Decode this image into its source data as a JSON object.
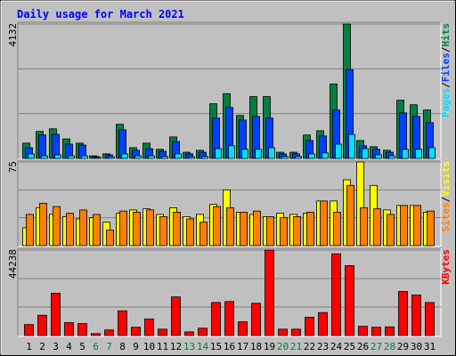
{
  "title": "Daily usage for March 2021",
  "legend_separator": "/",
  "chart_data": [
    {
      "type": "bar",
      "ylim": [
        0,
        4132
      ],
      "yticks": [
        4132
      ],
      "series": [
        {
          "name": "Hits",
          "color": "#008040",
          "values": [
            470,
            830,
            910,
            600,
            470,
            80,
            140,
            1050,
            330,
            470,
            280,
            660,
            190,
            250,
            1680,
            1990,
            1320,
            1900,
            1900,
            190,
            190,
            720,
            850,
            2290,
            4132,
            550,
            360,
            250,
            1790,
            1650,
            1490
          ]
        },
        {
          "name": "Files",
          "color": "#0040ff",
          "values": [
            330,
            720,
            740,
            440,
            410,
            55,
            110,
            880,
            250,
            300,
            220,
            520,
            140,
            190,
            1240,
            1570,
            1180,
            1290,
            1240,
            140,
            140,
            550,
            690,
            1490,
            2730,
            390,
            280,
            190,
            1400,
            1290,
            1100
          ]
        },
        {
          "name": "Pages",
          "color": "#00e0ff",
          "values": [
            140,
            80,
            110,
            80,
            80,
            30,
            50,
            140,
            80,
            80,
            60,
            140,
            50,
            60,
            300,
            390,
            280,
            280,
            330,
            60,
            60,
            140,
            170,
            440,
            740,
            300,
            110,
            80,
            280,
            280,
            330
          ]
        }
      ]
    },
    {
      "type": "bar",
      "ylim": [
        0,
        75
      ],
      "yticks": [
        75
      ],
      "series": [
        {
          "name": "Visits",
          "color": "#ffff00",
          "values": [
            16,
            34,
            28,
            26,
            24,
            25,
            21,
            29,
            32,
            33,
            28,
            34,
            26,
            28,
            37,
            50,
            30,
            28,
            26,
            29,
            28,
            29,
            40,
            40,
            59,
            75,
            54,
            32,
            36,
            36,
            30
          ]
        },
        {
          "name": "Sites",
          "color": "#ff8000",
          "values": [
            28,
            38,
            35,
            29,
            32,
            28,
            14,
            31,
            30,
            32,
            26,
            30,
            24,
            21,
            35,
            34,
            30,
            31,
            26,
            25,
            26,
            30,
            40,
            30,
            54,
            34,
            33,
            28,
            36,
            36,
            31
          ]
        }
      ]
    },
    {
      "type": "bar",
      "ylim": [
        0,
        44238
      ],
      "yticks": [
        44238
      ],
      "categories": [
        1,
        2,
        3,
        4,
        5,
        6,
        7,
        8,
        9,
        10,
        11,
        12,
        13,
        14,
        15,
        16,
        17,
        18,
        19,
        20,
        21,
        22,
        23,
        24,
        25,
        26,
        27,
        28,
        29,
        30,
        31
      ],
      "category_colors": [
        "#000000",
        "#000000",
        "#000000",
        "#000000",
        "#000000",
        "#008040",
        "#008040",
        "#000000",
        "#000000",
        "#000000",
        "#000000",
        "#000000",
        "#008040",
        "#008040",
        "#000000",
        "#000000",
        "#000000",
        "#000000",
        "#000000",
        "#008040",
        "#008040",
        "#000000",
        "#000000",
        "#000000",
        "#000000",
        "#000000",
        "#008040",
        "#008040",
        "#000000",
        "#000000",
        "#000000"
      ],
      "series": [
        {
          "name": "KBytes",
          "color": "#ff0000",
          "values": [
            5700,
            10500,
            21900,
            6700,
            6200,
            1000,
            2900,
            12800,
            4300,
            8600,
            3300,
            20000,
            1900,
            3800,
            17100,
            17600,
            7100,
            16700,
            44238,
            3300,
            3300,
            9500,
            11900,
            42300,
            36200,
            4800,
            4300,
            4500,
            22800,
            21000,
            17100
          ]
        }
      ]
    }
  ]
}
